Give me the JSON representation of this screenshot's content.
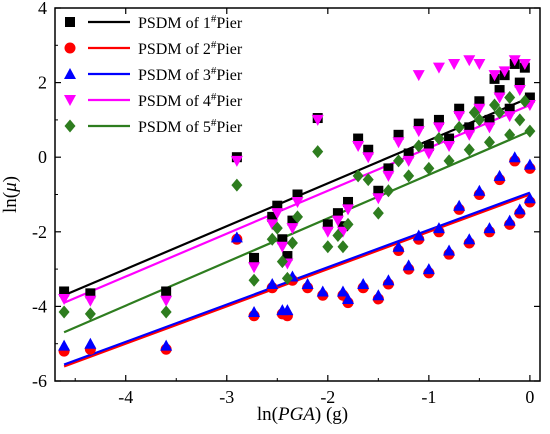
{
  "chart_data": {
    "type": "scatter",
    "xlabel_parts": [
      "ln(",
      "PGA",
      ") (g)"
    ],
    "ylabel_parts": [
      "ln(",
      "μ",
      ")"
    ],
    "xlim": [
      -4.7,
      0.1
    ],
    "ylim": [
      -6,
      4
    ],
    "xticks": [
      -4,
      -3,
      -2,
      -1,
      0
    ],
    "xtick_labels": [
      "-4",
      "-3",
      "-2",
      "-1",
      "0"
    ],
    "yticks": [
      -6,
      -4,
      -2,
      0,
      2,
      4
    ],
    "ytick_labels": [
      "-6",
      "-4",
      "-2",
      "0",
      "2",
      "4"
    ],
    "legend_position": "top-left",
    "series": [
      {
        "name": "PSDM of 1",
        "name_sup": "#",
        "name_suffix": "Pier",
        "marker": "square",
        "color": "#000000",
        "points": [
          [
            -4.61,
            -3.6
          ],
          [
            -4.35,
            -3.65
          ],
          [
            -3.6,
            -3.6
          ],
          [
            -2.9,
            0.0
          ],
          [
            -2.73,
            -2.7
          ],
          [
            -2.55,
            -1.6
          ],
          [
            -2.5,
            -1.3
          ],
          [
            -2.45,
            -2.2
          ],
          [
            -2.4,
            -2.65
          ],
          [
            -2.35,
            -1.7
          ],
          [
            -2.3,
            -1.0
          ],
          [
            -2.1,
            1.05
          ],
          [
            -2.0,
            -1.8
          ],
          [
            -1.9,
            -1.5
          ],
          [
            -1.85,
            -1.85
          ],
          [
            -1.8,
            -1.2
          ],
          [
            -1.7,
            0.5
          ],
          [
            -1.6,
            0.2
          ],
          [
            -1.5,
            -0.9
          ],
          [
            -1.4,
            -0.3
          ],
          [
            -1.3,
            0.6
          ],
          [
            -1.2,
            0.1
          ],
          [
            -1.1,
            0.9
          ],
          [
            -1.0,
            0.3
          ],
          [
            -0.9,
            1.0
          ],
          [
            -0.8,
            0.5
          ],
          [
            -0.7,
            1.3
          ],
          [
            -0.6,
            0.8
          ],
          [
            -0.5,
            1.5
          ],
          [
            -0.4,
            1.0
          ],
          [
            -0.3,
            1.8
          ],
          [
            -0.2,
            1.3
          ],
          [
            -0.1,
            2.0
          ],
          [
            0.0,
            1.6
          ],
          [
            -0.05,
            2.4
          ],
          [
            -0.15,
            2.5
          ],
          [
            -0.25,
            2.2
          ],
          [
            -0.35,
            2.1
          ]
        ],
        "fit": {
          "slope": 1.15,
          "intercept": 1.6
        }
      },
      {
        "name": "PSDM of 2",
        "name_sup": "#",
        "name_suffix": "Pier",
        "marker": "circle",
        "color": "#ff0000",
        "points": [
          [
            -4.61,
            -5.2
          ],
          [
            -4.35,
            -5.15
          ],
          [
            -3.6,
            -5.15
          ],
          [
            -2.9,
            -2.2
          ],
          [
            -2.73,
            -4.25
          ],
          [
            -2.55,
            -3.5
          ],
          [
            -2.45,
            -4.2
          ],
          [
            -2.4,
            -4.25
          ],
          [
            -2.35,
            -3.3
          ],
          [
            -2.2,
            -3.5
          ],
          [
            -2.05,
            -3.7
          ],
          [
            -1.85,
            -3.7
          ],
          [
            -1.8,
            -3.9
          ],
          [
            -1.65,
            -3.5
          ],
          [
            -1.5,
            -3.8
          ],
          [
            -1.4,
            -3.4
          ],
          [
            -1.2,
            -3.0
          ],
          [
            -1.0,
            -3.1
          ],
          [
            -0.8,
            -2.6
          ],
          [
            -0.6,
            -2.3
          ],
          [
            -0.4,
            -2.0
          ],
          [
            -0.2,
            -1.8
          ],
          [
            -0.1,
            -1.5
          ],
          [
            0.0,
            -1.2
          ],
          [
            -0.3,
            -0.6
          ],
          [
            -0.5,
            -1.0
          ],
          [
            -0.7,
            -1.4
          ],
          [
            -0.9,
            -2.0
          ],
          [
            -1.1,
            -2.2
          ],
          [
            -1.3,
            -2.5
          ],
          [
            0.0,
            -0.3
          ],
          [
            -0.15,
            -0.1
          ]
        ],
        "fit": {
          "slope": 1.0,
          "intercept": -1.0
        }
      },
      {
        "name": "PSDM of 3",
        "name_sup": "#",
        "name_suffix": "Pier",
        "marker": "triangle",
        "color": "#0000ff",
        "points": [
          [
            -4.61,
            -5.05
          ],
          [
            -4.35,
            -5.0
          ],
          [
            -3.6,
            -5.05
          ],
          [
            -2.9,
            -2.15
          ],
          [
            -2.73,
            -4.15
          ],
          [
            -2.55,
            -3.4
          ],
          [
            -2.45,
            -4.1
          ],
          [
            -2.4,
            -4.1
          ],
          [
            -2.35,
            -3.2
          ],
          [
            -2.2,
            -3.4
          ],
          [
            -2.05,
            -3.6
          ],
          [
            -1.85,
            -3.6
          ],
          [
            -1.8,
            -3.8
          ],
          [
            -1.65,
            -3.4
          ],
          [
            -1.5,
            -3.7
          ],
          [
            -1.4,
            -3.3
          ],
          [
            -1.2,
            -2.9
          ],
          [
            -1.0,
            -3.0
          ],
          [
            -0.8,
            -2.5
          ],
          [
            -0.6,
            -2.2
          ],
          [
            -0.4,
            -1.9
          ],
          [
            -0.2,
            -1.7
          ],
          [
            -0.1,
            -1.4
          ],
          [
            0.0,
            -1.1
          ],
          [
            -0.3,
            -0.5
          ],
          [
            -0.5,
            -0.9
          ],
          [
            -0.7,
            -1.3
          ],
          [
            -0.9,
            -1.9
          ],
          [
            -1.1,
            -2.1
          ],
          [
            -1.3,
            -2.4
          ],
          [
            0.0,
            -0.2
          ],
          [
            -0.15,
            0.0
          ]
        ],
        "fit": {
          "slope": 1.0,
          "intercept": -0.95
        }
      },
      {
        "name": "PSDM of 4",
        "name_sup": "#",
        "name_suffix": "Pier",
        "marker": "triangle-down",
        "color": "#ff00ff",
        "points": [
          [
            -4.61,
            -3.8
          ],
          [
            -4.35,
            -3.85
          ],
          [
            -3.6,
            -3.85
          ],
          [
            -2.9,
            -0.1
          ],
          [
            -2.73,
            -2.95
          ],
          [
            -2.55,
            -1.8
          ],
          [
            -2.5,
            -1.5
          ],
          [
            -2.45,
            -2.4
          ],
          [
            -2.4,
            -2.85
          ],
          [
            -2.35,
            -1.9
          ],
          [
            -2.3,
            -1.2
          ],
          [
            -2.1,
            1.0
          ],
          [
            -2.0,
            -2.0
          ],
          [
            -1.9,
            -1.7
          ],
          [
            -1.85,
            -2.0
          ],
          [
            -1.8,
            -1.4
          ],
          [
            -1.7,
            0.3
          ],
          [
            -1.6,
            0.0
          ],
          [
            -1.5,
            -1.1
          ],
          [
            -1.4,
            -0.5
          ],
          [
            -1.3,
            0.4
          ],
          [
            -1.2,
            -0.1
          ],
          [
            -1.1,
            0.7
          ],
          [
            -1.0,
            0.1
          ],
          [
            -0.9,
            0.8
          ],
          [
            -0.8,
            0.3
          ],
          [
            -0.7,
            1.1
          ],
          [
            -0.6,
            0.6
          ],
          [
            -0.5,
            1.3
          ],
          [
            -0.4,
            0.8
          ],
          [
            -0.3,
            1.6
          ],
          [
            -0.2,
            1.1
          ],
          [
            -0.1,
            1.8
          ],
          [
            0.0,
            1.4
          ],
          [
            -0.05,
            2.5
          ],
          [
            -0.15,
            2.6
          ],
          [
            -0.25,
            2.3
          ],
          [
            -0.35,
            2.2
          ],
          [
            -0.5,
            2.5
          ],
          [
            -0.6,
            2.6
          ],
          [
            -0.75,
            2.5
          ],
          [
            -0.9,
            2.4
          ],
          [
            -1.1,
            2.2
          ]
        ],
        "fit": {
          "slope": 1.15,
          "intercept": 1.4
        }
      },
      {
        "name": "PSDM of 5",
        "name_sup": "#",
        "name_suffix": "Pier",
        "marker": "diamond",
        "color": "#2e7d1f",
        "points": [
          [
            -4.61,
            -4.15
          ],
          [
            -4.35,
            -4.2
          ],
          [
            -3.6,
            -4.15
          ],
          [
            -2.9,
            -0.75
          ],
          [
            -2.73,
            -3.3
          ],
          [
            -2.55,
            -2.2
          ],
          [
            -2.5,
            -1.9
          ],
          [
            -2.45,
            -2.8
          ],
          [
            -2.4,
            -3.25
          ],
          [
            -2.35,
            -2.3
          ],
          [
            -2.3,
            -1.6
          ],
          [
            -2.1,
            0.15
          ],
          [
            -2.0,
            -2.4
          ],
          [
            -1.9,
            -2.1
          ],
          [
            -1.85,
            -2.4
          ],
          [
            -1.8,
            -1.8
          ],
          [
            -1.7,
            -0.5
          ],
          [
            -1.6,
            -0.6
          ],
          [
            -1.5,
            -1.5
          ],
          [
            -1.4,
            -0.9
          ],
          [
            -1.3,
            -0.1
          ],
          [
            -1.2,
            -0.5
          ],
          [
            -1.1,
            0.3
          ],
          [
            -1.0,
            -0.3
          ],
          [
            -0.9,
            0.5
          ],
          [
            -0.8,
            -0.1
          ],
          [
            -0.7,
            0.8
          ],
          [
            -0.6,
            0.2
          ],
          [
            -0.5,
            1.0
          ],
          [
            -0.4,
            0.4
          ],
          [
            -0.3,
            1.2
          ],
          [
            -0.2,
            0.6
          ],
          [
            -0.1,
            1.0
          ],
          [
            0.0,
            0.7
          ],
          [
            -0.05,
            1.5
          ],
          [
            -0.2,
            1.6
          ],
          [
            -0.35,
            1.4
          ],
          [
            -0.55,
            1.2
          ]
        ],
        "fit": {
          "slope": 1.17,
          "intercept": 0.7
        }
      }
    ]
  }
}
